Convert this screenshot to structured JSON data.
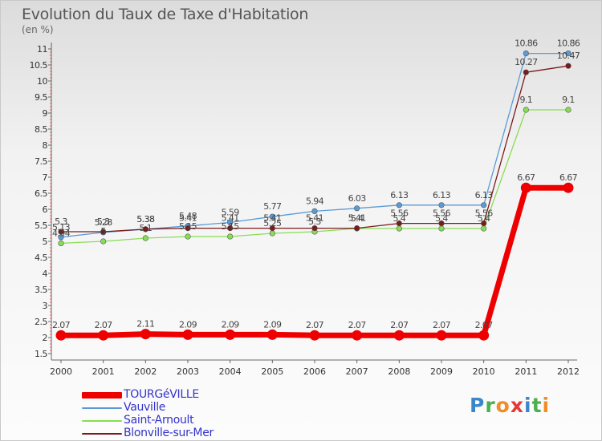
{
  "title": "Evolution du Taux de Taxe d'Habitation",
  "subtitle": "(en %)",
  "logo": {
    "letters": [
      {
        "char": "P",
        "color": "#3a86c8"
      },
      {
        "char": "r",
        "color": "#4caf50"
      },
      {
        "char": "o",
        "color": "#f28c28"
      },
      {
        "char": "x",
        "color": "#e53935"
      },
      {
        "char": "i",
        "color": "#3a86c8"
      },
      {
        "char": "t",
        "color": "#4caf50"
      },
      {
        "char": "i",
        "color": "#f28c28"
      }
    ]
  },
  "chart_data": {
    "type": "line",
    "title": "Evolution du Taux de Taxe d'Habitation",
    "ylabel": "(en %)",
    "xlabel": "",
    "x": [
      "2000",
      "2001",
      "2002",
      "2003",
      "2004",
      "2005",
      "2006",
      "2007",
      "2008",
      "2009",
      "2010",
      "2011",
      "2012"
    ],
    "ylim": [
      1.5,
      11
    ],
    "yticks": [
      "1.5",
      "2",
      "2.5",
      "3",
      "3.5",
      "4",
      "4.5",
      "5",
      "5.5",
      "6",
      "6.5",
      "7",
      "7.5",
      "8",
      "8.5",
      "9",
      "9.5",
      "10",
      "10.5",
      "11"
    ],
    "grid": false,
    "series": [
      {
        "name": "TOURGéVILLE",
        "color": "#ee0000",
        "width": 7,
        "marker": 6.5,
        "values": [
          2.07,
          2.07,
          2.11,
          2.09,
          2.09,
          2.09,
          2.07,
          2.07,
          2.07,
          2.07,
          2.07,
          6.67,
          6.67
        ],
        "labels": [
          "2.07",
          "2.07",
          "2.11",
          "2.09",
          "2.09",
          "2.09",
          "2.07",
          "2.07",
          "2.07",
          "2.07",
          "2.07",
          "6.67",
          "6.67"
        ]
      },
      {
        "name": "Vauville",
        "color": "#5b9bd5",
        "width": 1.3,
        "marker": 3.3,
        "values": [
          5.13,
          5.28,
          5.38,
          5.48,
          5.59,
          5.77,
          5.94,
          6.03,
          6.13,
          6.13,
          6.13,
          10.86,
          10.86
        ],
        "labels": [
          "5.13",
          "5.28",
          "5.38",
          "5.48",
          "5.59",
          "5.77",
          "5.94",
          "6.03",
          "6.13",
          "6.13",
          "6.13",
          "10.86",
          "10.86"
        ]
      },
      {
        "name": "Saint-Arnoult",
        "color": "#88dd55",
        "width": 1.3,
        "marker": 3.3,
        "values": [
          4.94,
          5.0,
          5.1,
          5.15,
          5.15,
          5.25,
          5.3,
          5.4,
          5.4,
          5.4,
          5.4,
          9.1,
          9.1
        ],
        "labels": [
          "4.94",
          "5",
          "5.1",
          "5.15",
          "5.15",
          "5.25",
          "5.3",
          "5.4",
          "5.4",
          "5.4",
          "5.4",
          "9.1",
          "9.1"
        ]
      },
      {
        "name": "Blonville-sur-Mer",
        "color": "#7a1a1a",
        "width": 1.3,
        "marker": 3.3,
        "values": [
          5.3,
          5.3,
          5.38,
          5.41,
          5.41,
          5.41,
          5.41,
          5.41,
          5.56,
          5.56,
          5.56,
          10.27,
          10.47
        ],
        "labels": [
          "5.3",
          "5.3",
          "5.38",
          "5.41",
          "5.41",
          "5.41",
          "5.41",
          "5.41",
          "5.56",
          "5.56",
          "5.56",
          "10.27",
          "10.47"
        ]
      }
    ]
  }
}
